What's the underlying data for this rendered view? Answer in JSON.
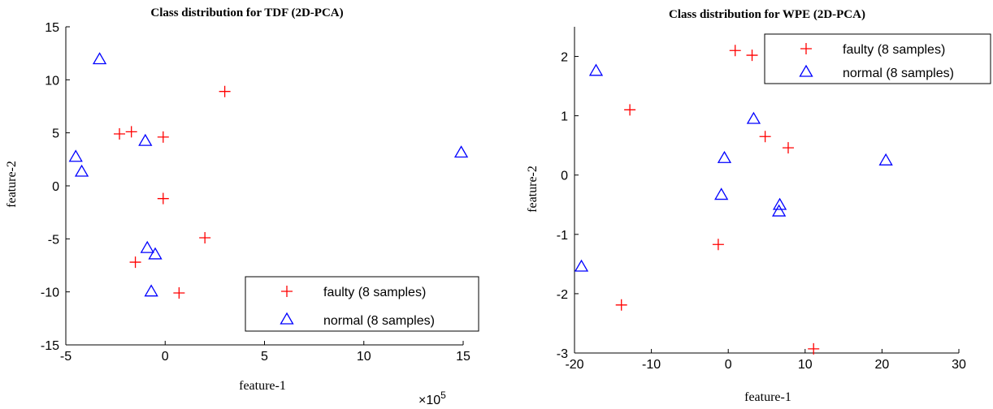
{
  "chart_data": [
    {
      "type": "scatter",
      "title": "Class distribution for TDF (2D-PCA)",
      "xlabel": "feature-1",
      "ylabel": "feature-2",
      "x_multiplier": "× 10^5",
      "xlim": [
        -5,
        15
      ],
      "ylim": [
        -15,
        15
      ],
      "xticks": [
        -5,
        0,
        5,
        10,
        15
      ],
      "yticks": [
        -15,
        -10,
        -5,
        0,
        5,
        10,
        15
      ],
      "legend_position": "bottom-right",
      "series": [
        {
          "name": "faulty (8 samples)",
          "marker": "plus",
          "color": "#ff0000",
          "points": [
            [
              3.0,
              8.9
            ],
            [
              -2.3,
              4.9
            ],
            [
              -1.7,
              5.1
            ],
            [
              -0.1,
              4.6
            ],
            [
              -0.1,
              -1.2
            ],
            [
              2.0,
              -4.9
            ],
            [
              -1.5,
              -7.2
            ],
            [
              0.7,
              -10.1
            ]
          ]
        },
        {
          "name": "normal (8 samples)",
          "marker": "triangle",
          "color": "#0000ff",
          "points": [
            [
              -3.3,
              11.9
            ],
            [
              -4.5,
              2.7
            ],
            [
              -4.2,
              1.3
            ],
            [
              -1.0,
              4.2
            ],
            [
              14.9,
              3.1
            ],
            [
              -0.9,
              -5.9
            ],
            [
              -0.5,
              -6.5
            ],
            [
              -0.7,
              -10.0
            ]
          ]
        }
      ]
    },
    {
      "type": "scatter",
      "title": "Class distribution for WPE (2D-PCA)",
      "xlabel": "feature-1",
      "ylabel": "feature-2",
      "xlim": [
        -20,
        30
      ],
      "ylim": [
        -3,
        2.5
      ],
      "xticks": [
        -20,
        -10,
        0,
        10,
        20,
        30
      ],
      "yticks": [
        -3,
        -2,
        -1,
        0,
        1,
        2
      ],
      "legend_position": "top-right",
      "series": [
        {
          "name": "faulty (8 samples)",
          "marker": "plus",
          "color": "#ff0000",
          "points": [
            [
              0.9,
              2.1
            ],
            [
              3.1,
              2.02
            ],
            [
              -12.8,
              1.1
            ],
            [
              4.8,
              0.65
            ],
            [
              7.8,
              0.46
            ],
            [
              -1.3,
              -1.17
            ],
            [
              -13.9,
              -2.19
            ],
            [
              11.1,
              -2.93
            ]
          ]
        },
        {
          "name": "normal (8 samples)",
          "marker": "triangle",
          "color": "#0000ff",
          "points": [
            [
              -17.2,
              1.75
            ],
            [
              3.3,
              0.94
            ],
            [
              -0.5,
              0.28
            ],
            [
              20.5,
              0.24
            ],
            [
              -0.9,
              -0.34
            ],
            [
              6.7,
              -0.51
            ],
            [
              6.6,
              -0.62
            ],
            [
              -19.1,
              -1.55
            ]
          ]
        }
      ]
    }
  ]
}
